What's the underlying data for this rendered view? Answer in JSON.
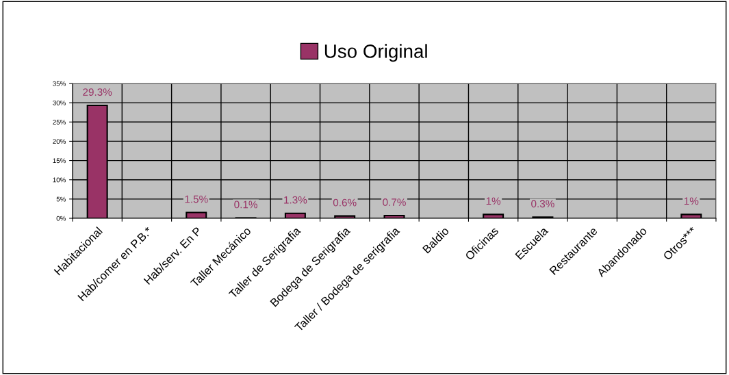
{
  "chart_data": {
    "type": "bar",
    "categories": [
      "Habitacional",
      "Hab/comer en P.B.*",
      "Hab/serv. En P",
      "Taller Mecánico",
      "Taller de Serigrafia",
      "Bodega de Serigrafia",
      "Taller / Bodega de serigrafia",
      "Baldio",
      "Oficinas",
      "Escuela",
      "Restaurante",
      "Abandonado",
      "Otros***"
    ],
    "series": [
      {
        "name": "Uso Original",
        "color": "#993366",
        "values": [
          29.3,
          null,
          1.5,
          0.1,
          1.3,
          0.6,
          0.7,
          null,
          1,
          0.3,
          null,
          null,
          1
        ],
        "value_labels": [
          "29.3%",
          null,
          "1.5%",
          "0.1%",
          "1.3%",
          "0.6%",
          "0.7%",
          null,
          "1%",
          "0.3%",
          null,
          null,
          "1%"
        ]
      }
    ],
    "ylim": [
      0,
      35
    ],
    "yticks": [
      {
        "value": 0,
        "label": "0%"
      },
      {
        "value": 5,
        "label": "5%"
      },
      {
        "value": 10,
        "label": "10%"
      },
      {
        "value": 15,
        "label": "15%"
      },
      {
        "value": 20,
        "label": "20%"
      },
      {
        "value": 25,
        "label": "25%"
      },
      {
        "value": 30,
        "label": "30%"
      },
      {
        "value": 35,
        "label": "35%"
      }
    ],
    "grid": true,
    "legend": "top"
  }
}
